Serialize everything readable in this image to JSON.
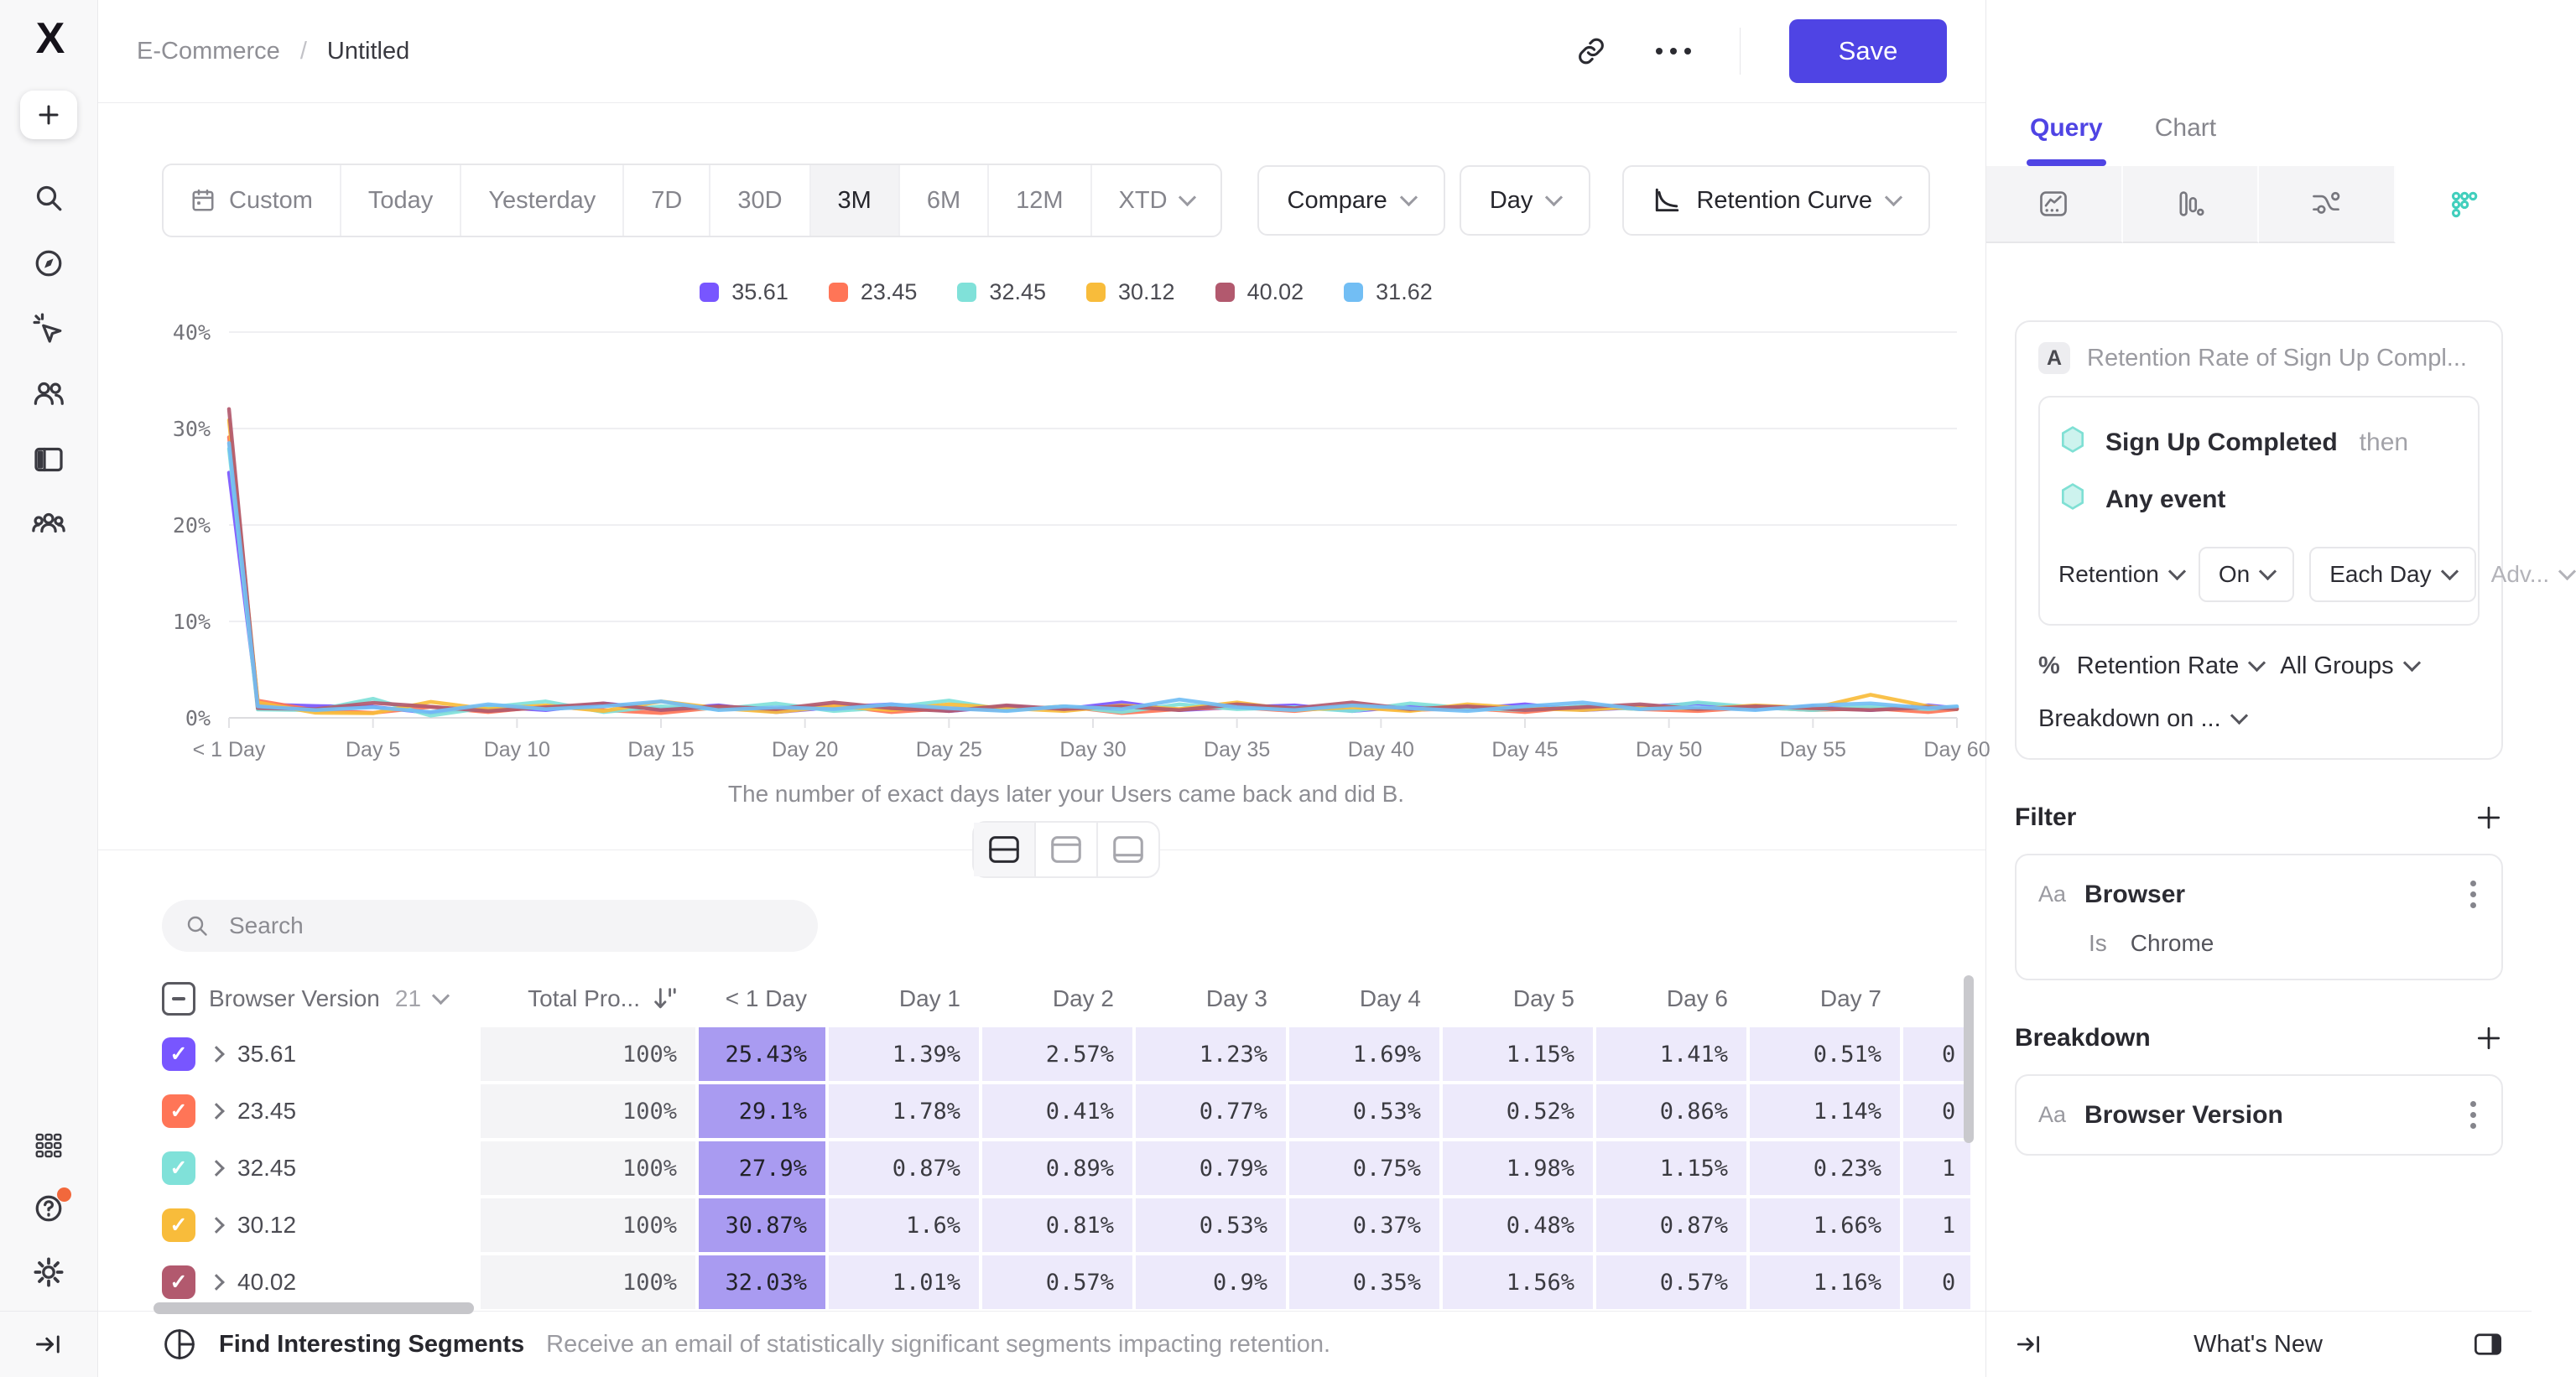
{
  "header": {
    "breadcrumb_project": "E-Commerce",
    "breadcrumb_sep": "/",
    "breadcrumb_report": "Untitled",
    "save_label": "Save"
  },
  "toolbar": {
    "date_ranges": [
      "Custom",
      "Today",
      "Yesterday",
      "7D",
      "30D",
      "3M",
      "6M",
      "12M",
      "XTD"
    ],
    "active_range": "3M",
    "compare_label": "Compare",
    "granularity": "Day",
    "chart_type": "Retention Curve"
  },
  "chart_data": {
    "type": "line",
    "title": "",
    "caption": "The number of exact days later your Users came back and did B.",
    "ylabel": "",
    "xlabel": "",
    "ylim": [
      0,
      40
    ],
    "y_ticks": [
      0,
      10,
      20,
      30,
      40
    ],
    "y_tick_suffix": "%",
    "x_tick_days": [
      0,
      5,
      10,
      15,
      20,
      25,
      30,
      35,
      40,
      45,
      50,
      55,
      60
    ],
    "x_tick_labels": [
      "< 1 Day",
      "Day 5",
      "Day 10",
      "Day 15",
      "Day 20",
      "Day 25",
      "Day 30",
      "Day 35",
      "Day 40",
      "Day 45",
      "Day 50",
      "Day 55",
      "Day 60"
    ],
    "grid": true,
    "legend_position": "top-center",
    "x_days": [
      0,
      1,
      3,
      5,
      7,
      9,
      11,
      13,
      15,
      17,
      19,
      21,
      23,
      25,
      27,
      29,
      31,
      33,
      35,
      37,
      39,
      41,
      43,
      45,
      47,
      49,
      51,
      53,
      55,
      57,
      59,
      60
    ],
    "series": [
      {
        "name": "35.61",
        "color": "#7856FF",
        "values": [
          25.43,
          1.39,
          1.23,
          1.15,
          0.51,
          1.2,
          0.8,
          1.5,
          0.9,
          1.3,
          0.6,
          1.1,
          1.4,
          0.7,
          1.2,
          0.9,
          1.6,
          0.8,
          1.1,
          1.3,
          0.7,
          1.2,
          0.9,
          1.4,
          0.8,
          1.1,
          1.5,
          0.9,
          1.2,
          0.8,
          1.3,
          1.0
        ]
      },
      {
        "name": "23.45",
        "color": "#FF7557",
        "values": [
          29.1,
          1.78,
          0.77,
          0.52,
          1.14,
          0.6,
          1.2,
          0.8,
          0.5,
          1.1,
          0.9,
          1.3,
          0.6,
          1.0,
          0.8,
          1.2,
          0.5,
          0.9,
          1.1,
          0.7,
          1.3,
          0.8,
          1.0,
          0.6,
          1.2,
          0.9,
          0.7,
          1.1,
          0.8,
          1.0,
          0.6,
          0.9
        ]
      },
      {
        "name": "32.45",
        "color": "#80E1D9",
        "values": [
          27.9,
          0.87,
          0.79,
          1.98,
          0.23,
          1.1,
          1.7,
          0.6,
          1.2,
          0.9,
          1.5,
          0.7,
          1.1,
          1.8,
          0.8,
          1.2,
          0.6,
          1.4,
          0.9,
          1.1,
          0.7,
          1.5,
          1.0,
          0.8,
          1.2,
          0.9,
          1.6,
          1.1,
          0.8,
          1.2,
          0.9,
          1.1
        ]
      },
      {
        "name": "30.12",
        "color": "#F8BC3B",
        "values": [
          30.87,
          1.6,
          0.53,
          0.48,
          1.66,
          0.9,
          1.3,
          0.7,
          1.7,
          1.0,
          0.6,
          1.2,
          0.8,
          1.4,
          1.0,
          0.7,
          1.3,
          0.9,
          1.6,
          0.8,
          1.1,
          0.7,
          1.4,
          1.0,
          0.8,
          1.2,
          0.9,
          1.3,
          1.0,
          2.4,
          1.2,
          0.9
        ]
      },
      {
        "name": "40.02",
        "color": "#B2596E",
        "values": [
          32.03,
          1.01,
          0.9,
          1.56,
          1.16,
          0.7,
          1.1,
          1.5,
          0.8,
          1.2,
          0.9,
          1.6,
          1.0,
          0.7,
          1.3,
          0.9,
          1.2,
          0.8,
          1.4,
          1.0,
          1.6,
          0.9,
          1.2,
          0.8,
          1.1,
          1.4,
          0.9,
          1.2,
          1.0,
          0.8,
          1.1,
          0.9
        ]
      },
      {
        "name": "31.62",
        "color": "#72BEF4",
        "values": [
          28.5,
          1.2,
          0.8,
          1.1,
          0.6,
          1.4,
          0.9,
          1.2,
          1.7,
          0.8,
          1.1,
          0.9,
          1.4,
          1.0,
          0.7,
          1.2,
          0.9,
          1.9,
          1.1,
          0.8,
          1.3,
          1.0,
          0.7,
          1.2,
          1.6,
          0.9,
          1.1,
          0.8,
          1.3,
          1.5,
          1.0,
          1.2
        ]
      }
    ]
  },
  "view_toggle": {
    "modes": [
      "split-view",
      "chart-only-view",
      "table-only-view"
    ],
    "active": "split-view"
  },
  "search": {
    "placeholder": "Search"
  },
  "table": {
    "group_label": "Browser Version",
    "group_count": "21",
    "total_label": "Total Pro...",
    "day_headers": [
      "< 1 Day",
      "Day 1",
      "Day 2",
      "Day 3",
      "Day 4",
      "Day 5",
      "Day 6",
      "Day 7"
    ],
    "rows": [
      {
        "label": "35.61",
        "total": "100%",
        "values": [
          "25.43%",
          "1.39%",
          "2.57%",
          "1.23%",
          "1.69%",
          "1.15%",
          "1.41%",
          "0.51%"
        ],
        "clipped": "0"
      },
      {
        "label": "23.45",
        "total": "100%",
        "values": [
          "29.1%",
          "1.78%",
          "0.41%",
          "0.77%",
          "0.53%",
          "0.52%",
          "0.86%",
          "1.14%"
        ],
        "clipped": "0"
      },
      {
        "label": "32.45",
        "total": "100%",
        "values": [
          "27.9%",
          "0.87%",
          "0.89%",
          "0.79%",
          "0.75%",
          "1.98%",
          "1.15%",
          "0.23%"
        ],
        "clipped": "1"
      },
      {
        "label": "30.12",
        "total": "100%",
        "values": [
          "30.87%",
          "1.6%",
          "0.81%",
          "0.53%",
          "0.37%",
          "0.48%",
          "0.87%",
          "1.66%"
        ],
        "clipped": "1"
      },
      {
        "label": "40.02",
        "total": "100%",
        "values": [
          "32.03%",
          "1.01%",
          "0.57%",
          "0.9%",
          "0.35%",
          "1.56%",
          "0.57%",
          "1.16%"
        ],
        "clipped": "0"
      }
    ]
  },
  "query_panel": {
    "tab_query": "Query",
    "tab_chart": "Chart",
    "report_types": [
      "insights",
      "funnels",
      "flows",
      "retention"
    ],
    "active_report_type": "retention",
    "step_badge": "A",
    "step_title": "Retention Rate of Sign Up Compl...",
    "event_a": "Sign Up Completed",
    "event_a_suffix": "then",
    "event_b": "Any event",
    "retention_label": "Retention",
    "on_label": "On",
    "each_day_label": "Each Day",
    "advanced_label": "Adv...",
    "metric_symbol": "%",
    "metric_label": "Retention Rate",
    "groups_label": "All Groups",
    "breakdown_on_label": "Breakdown on ...",
    "filter_heading": "Filter",
    "filter_property_type": "Aa",
    "filter_property": "Browser",
    "filter_operator": "Is",
    "filter_value": "Chrome",
    "breakdown_heading": "Breakdown",
    "breakdown_property_type": "Aa",
    "breakdown_property": "Browser Version",
    "whats_new": "What's New"
  },
  "footer": {
    "title": "Find Interesting Segments",
    "description": "Receive an email of statistically significant segments impacting retention."
  },
  "colors": {
    "accent": "#4F44E4",
    "table_cell_strong": "#A99BF1",
    "table_cell_light": "#EDEAFB",
    "series": [
      "#7856FF",
      "#FF7557",
      "#80E1D9",
      "#F8BC3B",
      "#B2596E",
      "#72BEF4"
    ]
  }
}
